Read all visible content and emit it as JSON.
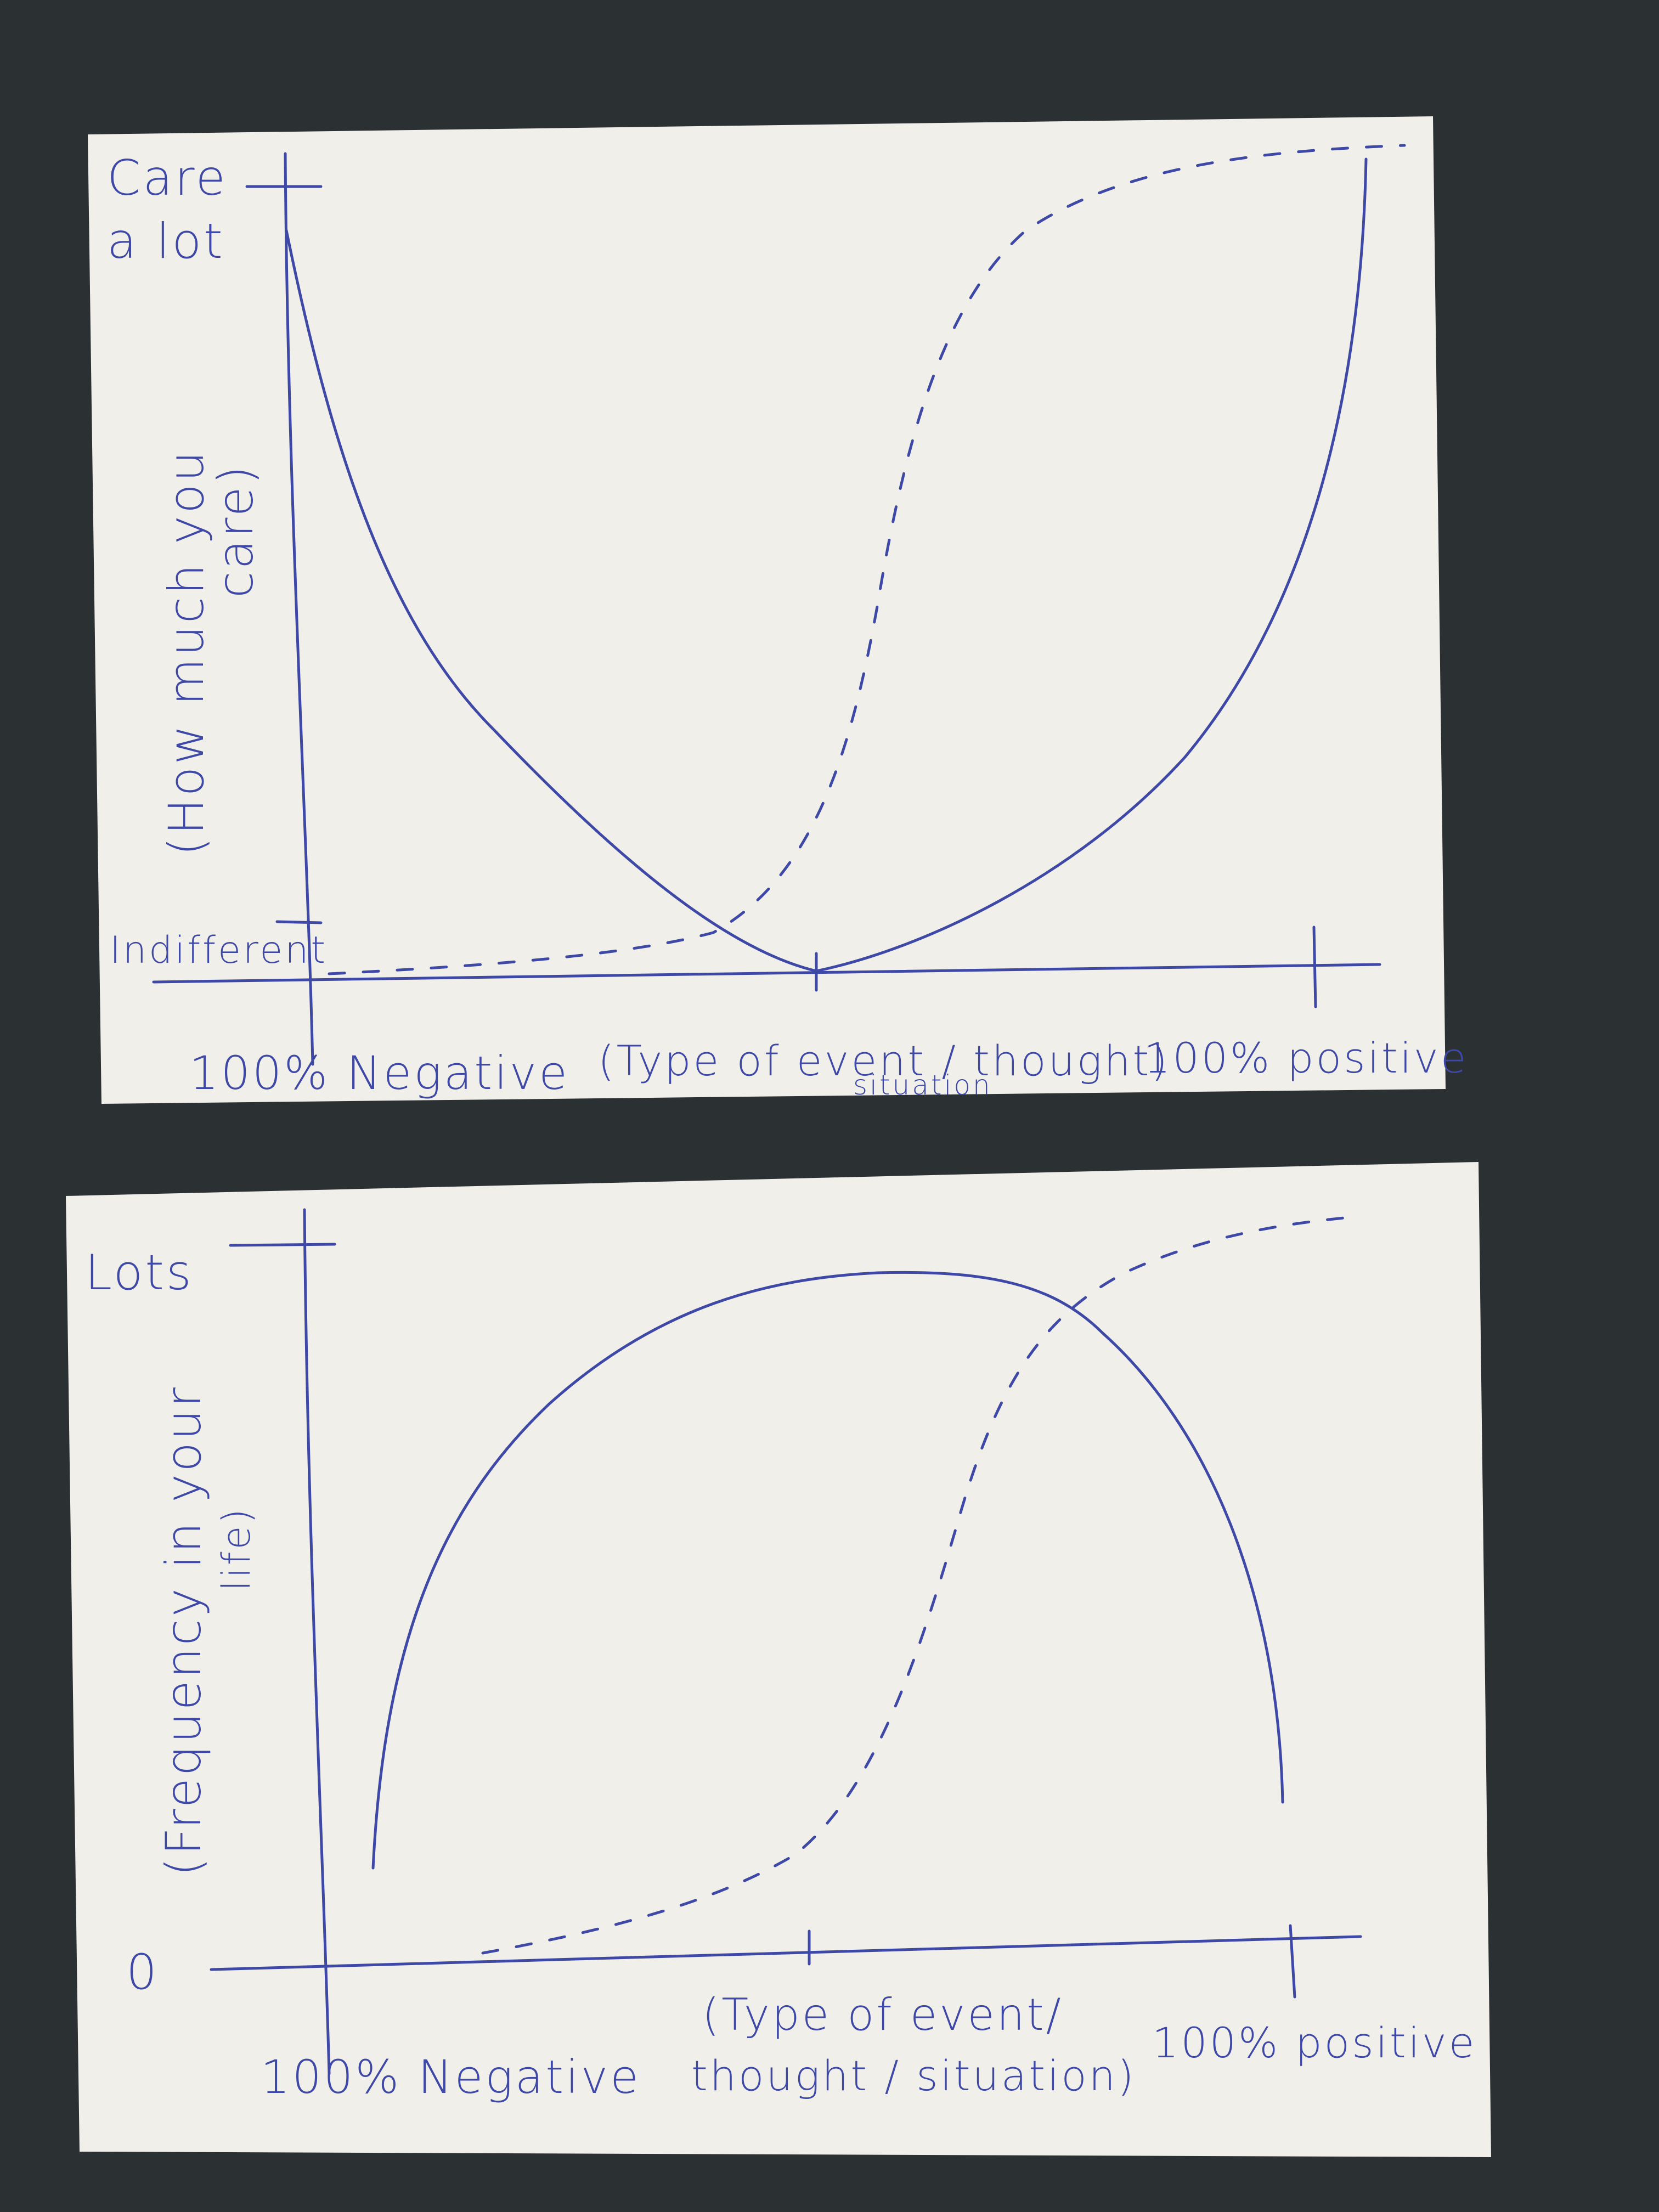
{
  "colors": {
    "ink": "#3e48a6",
    "paper": "#f1efe9",
    "background": "#2b3033"
  },
  "chart_data": [
    {
      "type": "line",
      "title": "",
      "ylabel": "(How much you care)",
      "xlabel": "(Type of event / thought / situation)",
      "y_top_label": "Care a lot",
      "y_bottom_label": "Indifferent",
      "x_left_label": "100% Negative",
      "x_right_label": "100% positive",
      "x": [
        -100,
        -75,
        -50,
        -25,
        0,
        25,
        50,
        75,
        100
      ],
      "series": [
        {
          "style": "solid",
          "values": [
            100,
            55,
            25,
            7,
            0,
            7,
            25,
            55,
            100
          ]
        },
        {
          "style": "dashed",
          "values": [
            0,
            1,
            2,
            8,
            45,
            85,
            96,
            99,
            100
          ]
        }
      ]
    },
    {
      "type": "line",
      "title": "",
      "ylabel": "(Frequency in your life)",
      "xlabel": "(Type of event / thought / situation)",
      "y_top_label": "Lots",
      "y_bottom_label": "0",
      "x_left_label": "100% Negative",
      "x_right_label": "100% positive",
      "x": [
        -90,
        -75,
        -50,
        -25,
        0,
        25,
        50,
        75,
        100
      ],
      "series": [
        {
          "style": "solid",
          "values": [
            15,
            55,
            82,
            96,
            100,
            98,
            88,
            60,
            23
          ]
        },
        {
          "style": "dashed",
          "values": [
            0,
            0,
            1,
            3,
            8,
            45,
            85,
            97,
            100
          ]
        }
      ]
    }
  ],
  "card1": {
    "y_top_label_line1": "Care",
    "y_top_label_line2": "a lot",
    "y_bottom_label": "Indifferent",
    "y_axis_label_line1": "(How much you",
    "y_axis_label_line2": "care)",
    "x_left_label": "100% Negative",
    "x_axis_label_line1": "(Type of event / thought)",
    "x_axis_label_line2": "situation",
    "x_right_label": "100% positive"
  },
  "card2": {
    "y_top_label": "Lots",
    "y_bottom_label": "0",
    "y_axis_label_line1": "(Frequency in your",
    "y_axis_label_line2": "life)",
    "x_left_label": "100% Negative",
    "x_axis_label_line1": "(Type of event/",
    "x_axis_label_line2": "thought / situation)",
    "x_right_label": "100% positive"
  }
}
